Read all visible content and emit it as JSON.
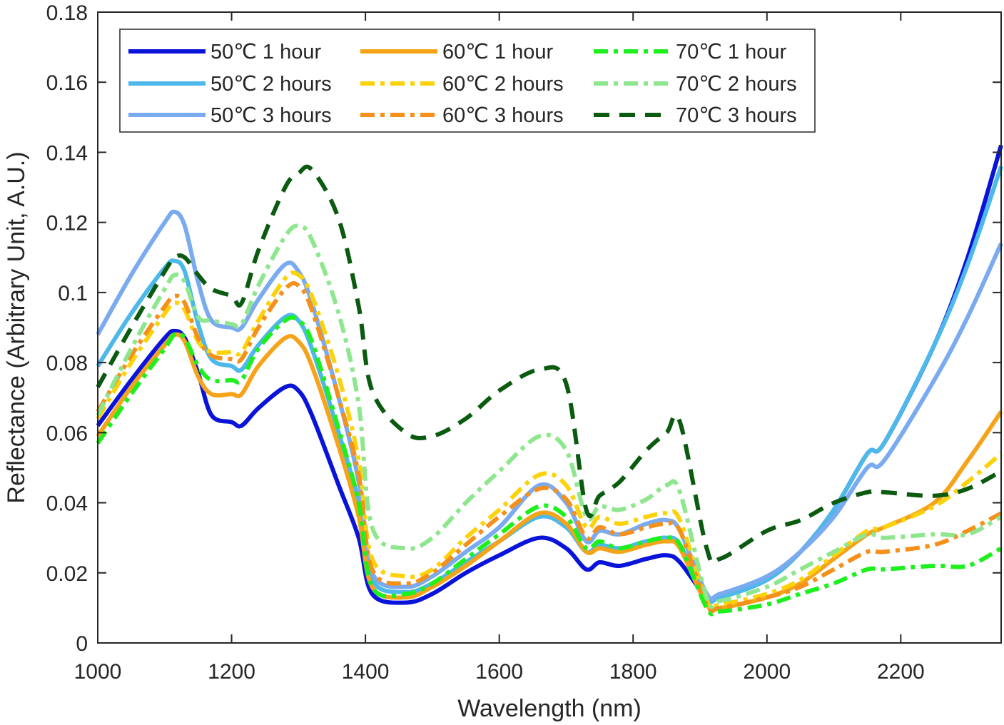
{
  "chart_data": {
    "type": "line",
    "title": "",
    "xlabel": "Wavelength (nm)",
    "ylabel": "Reflectance (Arbitrary Unit, A.U.)",
    "xlim": [
      1000,
      2350
    ],
    "ylim": [
      0,
      0.18
    ],
    "xticks": [
      1000,
      1200,
      1400,
      1600,
      1800,
      2000,
      2200
    ],
    "yticks": [
      0,
      0.02,
      0.04,
      0.06,
      0.08,
      0.1,
      0.12,
      0.14,
      0.16,
      0.18
    ],
    "ytick_labels": [
      "0",
      "0.02",
      "0.04",
      "0.06",
      "0.08",
      "0.1",
      "0.12",
      "0.14",
      "0.16",
      "0.18"
    ],
    "grid": false,
    "legend_position": "top-left",
    "x": [
      1000,
      1050,
      1100,
      1115,
      1130,
      1150,
      1170,
      1200,
      1215,
      1240,
      1280,
      1300,
      1320,
      1360,
      1390,
      1410,
      1460,
      1500,
      1550,
      1600,
      1660,
      1700,
      1730,
      1750,
      1780,
      1820,
      1850,
      1870,
      1910,
      1930,
      2000,
      2050,
      2100,
      2150,
      2175,
      2250,
      2300,
      2350
    ],
    "series": [
      {
        "name": "50℃ 1 hour",
        "color": "#0a14d8",
        "dash": "solid",
        "values": [
          0.062,
          0.075,
          0.087,
          0.089,
          0.087,
          0.077,
          0.065,
          0.063,
          0.062,
          0.067,
          0.073,
          0.072,
          0.065,
          0.045,
          0.03,
          0.014,
          0.0115,
          0.014,
          0.02,
          0.025,
          0.03,
          0.027,
          0.021,
          0.023,
          0.022,
          0.024,
          0.025,
          0.023,
          0.013,
          0.013,
          0.018,
          0.026,
          0.038,
          0.054,
          0.057,
          0.085,
          0.11,
          0.142
        ]
      },
      {
        "name": "50℃ 2 hours",
        "color": "#4db8ea",
        "dash": "solid",
        "values": [
          0.079,
          0.094,
          0.107,
          0.109,
          0.106,
          0.091,
          0.081,
          0.079,
          0.078,
          0.085,
          0.093,
          0.092,
          0.084,
          0.06,
          0.04,
          0.018,
          0.0145,
          0.017,
          0.023,
          0.029,
          0.036,
          0.033,
          0.026,
          0.028,
          0.027,
          0.029,
          0.03,
          0.028,
          0.013,
          0.013,
          0.018,
          0.026,
          0.038,
          0.054,
          0.057,
          0.085,
          0.108,
          0.136
        ]
      },
      {
        "name": "50℃ 3 hours",
        "color": "#7aaaf0",
        "dash": "solid",
        "values": [
          0.088,
          0.105,
          0.12,
          0.123,
          0.119,
          0.103,
          0.092,
          0.09,
          0.09,
          0.098,
          0.108,
          0.106,
          0.097,
          0.07,
          0.046,
          0.02,
          0.016,
          0.019,
          0.026,
          0.033,
          0.045,
          0.04,
          0.029,
          0.032,
          0.031,
          0.034,
          0.035,
          0.032,
          0.014,
          0.014,
          0.019,
          0.026,
          0.036,
          0.05,
          0.052,
          0.075,
          0.093,
          0.114
        ]
      },
      {
        "name": "60℃ 1 hour",
        "color": "#f5a41a",
        "dash": "solid",
        "values": [
          0.059,
          0.073,
          0.085,
          0.088,
          0.086,
          0.076,
          0.071,
          0.071,
          0.071,
          0.079,
          0.087,
          0.086,
          0.079,
          0.056,
          0.036,
          0.016,
          0.013,
          0.016,
          0.022,
          0.029,
          0.037,
          0.034,
          0.026,
          0.027,
          0.026,
          0.028,
          0.029,
          0.027,
          0.011,
          0.01,
          0.013,
          0.017,
          0.024,
          0.031,
          0.033,
          0.04,
          0.052,
          0.066
        ]
      },
      {
        "name": "60℃ 2 hours",
        "color": "#fcd20a",
        "dash": "dashdot",
        "values": [
          0.064,
          0.08,
          0.094,
          0.097,
          0.095,
          0.086,
          0.083,
          0.083,
          0.083,
          0.092,
          0.104,
          0.105,
          0.099,
          0.076,
          0.052,
          0.024,
          0.019,
          0.021,
          0.03,
          0.038,
          0.048,
          0.045,
          0.033,
          0.036,
          0.034,
          0.036,
          0.037,
          0.035,
          0.012,
          0.011,
          0.014,
          0.018,
          0.025,
          0.032,
          0.033,
          0.039,
          0.046,
          0.054
        ]
      },
      {
        "name": "60℃ 3 hours",
        "color": "#f5901a",
        "dash": "dashdot",
        "values": [
          0.066,
          0.082,
          0.096,
          0.099,
          0.097,
          0.087,
          0.082,
          0.081,
          0.081,
          0.09,
          0.101,
          0.102,
          0.095,
          0.07,
          0.048,
          0.021,
          0.017,
          0.02,
          0.028,
          0.036,
          0.044,
          0.041,
          0.03,
          0.033,
          0.031,
          0.033,
          0.034,
          0.032,
          0.011,
          0.01,
          0.013,
          0.016,
          0.021,
          0.026,
          0.026,
          0.028,
          0.032,
          0.037
        ]
      },
      {
        "name": "70℃ 1 hour",
        "color": "#1ef01e",
        "dash": "dashdot",
        "values": [
          0.057,
          0.071,
          0.084,
          0.088,
          0.087,
          0.079,
          0.075,
          0.075,
          0.075,
          0.084,
          0.092,
          0.092,
          0.086,
          0.061,
          0.04,
          0.016,
          0.014,
          0.017,
          0.024,
          0.031,
          0.039,
          0.036,
          0.027,
          0.029,
          0.027,
          0.029,
          0.03,
          0.028,
          0.01,
          0.009,
          0.011,
          0.014,
          0.017,
          0.021,
          0.021,
          0.022,
          0.022,
          0.027
        ]
      },
      {
        "name": "70℃ 2 hours",
        "color": "#8ee68e",
        "dash": "dashdot",
        "values": [
          0.065,
          0.084,
          0.101,
          0.105,
          0.103,
          0.093,
          0.092,
          0.091,
          0.091,
          0.102,
          0.116,
          0.119,
          0.115,
          0.094,
          0.068,
          0.033,
          0.027,
          0.03,
          0.04,
          0.049,
          0.059,
          0.055,
          0.036,
          0.039,
          0.038,
          0.041,
          0.045,
          0.043,
          0.013,
          0.012,
          0.016,
          0.021,
          0.026,
          0.031,
          0.03,
          0.031,
          0.031,
          0.036
        ]
      },
      {
        "name": "70℃ 3 hours",
        "color": "#0a5a10",
        "dash": "dash",
        "values": [
          0.073,
          0.09,
          0.106,
          0.11,
          0.11,
          0.105,
          0.101,
          0.099,
          0.097,
          0.112,
          0.13,
          0.134,
          0.135,
          0.121,
          0.096,
          0.072,
          0.06,
          0.059,
          0.064,
          0.072,
          0.078,
          0.074,
          0.038,
          0.042,
          0.046,
          0.055,
          0.06,
          0.063,
          0.027,
          0.024,
          0.032,
          0.035,
          0.04,
          0.043,
          0.043,
          0.042,
          0.044,
          0.049
        ]
      }
    ]
  }
}
